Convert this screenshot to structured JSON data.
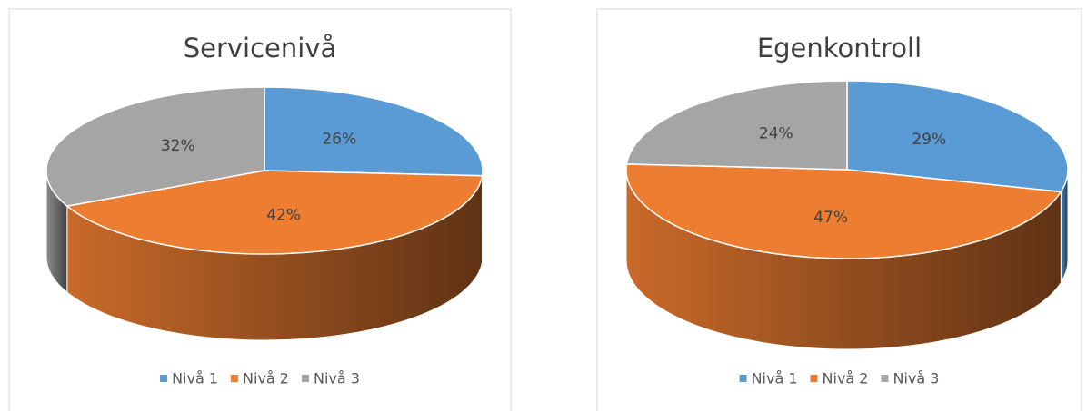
{
  "chart_data": [
    {
      "type": "pie",
      "title": "Servicenivå",
      "categories": [
        "Nivå 1",
        "Nivå 2",
        "Nivå 3"
      ],
      "values": [
        26,
        42,
        32
      ],
      "value_labels": [
        "26%",
        "42%",
        "32%"
      ],
      "colors": [
        "#5b9bd5",
        "#ed7d31",
        "#a5a5a5"
      ],
      "legend": "bottom"
    },
    {
      "type": "pie",
      "title": "Egenkontroll",
      "categories": [
        "Nivå 1",
        "Nivå 2",
        "Nivå 3"
      ],
      "values": [
        29,
        47,
        24
      ],
      "value_labels": [
        "29%",
        "47%",
        "24%"
      ],
      "colors": [
        "#5b9bd5",
        "#ed7d31",
        "#a5a5a5"
      ],
      "legend": "bottom"
    }
  ]
}
